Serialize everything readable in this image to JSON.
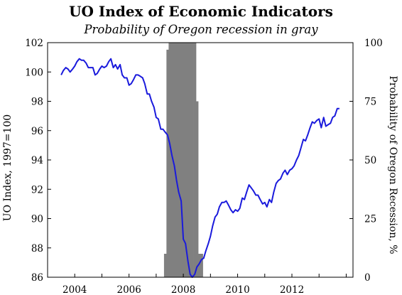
{
  "title": "UO Index of Economic Indicators",
  "subtitle": "Probability of Oregon recession in gray",
  "chart_data": {
    "type": "line",
    "title": "UO Index of Economic Indicators",
    "subtitle": "Probability of Oregon recession in gray",
    "xlabel": "",
    "ylabel_left": "UO Index, 1997=100",
    "ylabel_right": "Probability of Oregon Recession, %",
    "x_ticks": [
      "2004",
      "2006",
      "2008",
      "2010",
      "2012"
    ],
    "x_range": [
      2003.5,
      2014.75
    ],
    "y_left_range": [
      86,
      102
    ],
    "y_left_ticks": [
      86,
      88,
      90,
      92,
      94,
      96,
      98,
      100,
      102
    ],
    "y_right_range": [
      0,
      100
    ],
    "y_right_ticks": [
      0,
      25,
      50,
      75,
      100
    ],
    "grid": false,
    "colors": {
      "index_line": "#1a1adc",
      "recession_bars": "#808080"
    },
    "series": [
      {
        "axis": "left",
        "color": "#1a1adc",
        "points": [
          [
            2004.0,
            99.8
          ],
          [
            2004.08,
            100.1
          ],
          [
            2004.17,
            100.3
          ],
          [
            2004.25,
            100.2
          ],
          [
            2004.33,
            100.0
          ],
          [
            2004.42,
            100.2
          ],
          [
            2004.5,
            100.4
          ],
          [
            2004.58,
            100.7
          ],
          [
            2004.67,
            100.9
          ],
          [
            2004.75,
            100.8
          ],
          [
            2004.83,
            100.8
          ],
          [
            2004.92,
            100.6
          ],
          [
            2005.0,
            100.3
          ],
          [
            2005.08,
            100.3
          ],
          [
            2005.17,
            100.3
          ],
          [
            2005.25,
            99.8
          ],
          [
            2005.33,
            99.9
          ],
          [
            2005.42,
            100.2
          ],
          [
            2005.5,
            100.4
          ],
          [
            2005.58,
            100.3
          ],
          [
            2005.67,
            100.4
          ],
          [
            2005.75,
            100.7
          ],
          [
            2005.83,
            100.9
          ],
          [
            2005.92,
            100.3
          ],
          [
            2006.0,
            100.5
          ],
          [
            2006.08,
            100.2
          ],
          [
            2006.17,
            100.5
          ],
          [
            2006.25,
            99.8
          ],
          [
            2006.33,
            99.6
          ],
          [
            2006.42,
            99.6
          ],
          [
            2006.5,
            99.1
          ],
          [
            2006.58,
            99.2
          ],
          [
            2006.67,
            99.5
          ],
          [
            2006.75,
            99.8
          ],
          [
            2006.83,
            99.8
          ],
          [
            2006.92,
            99.7
          ],
          [
            2007.0,
            99.6
          ],
          [
            2007.08,
            99.2
          ],
          [
            2007.17,
            98.5
          ],
          [
            2007.25,
            98.5
          ],
          [
            2007.33,
            98.0
          ],
          [
            2007.42,
            97.6
          ],
          [
            2007.5,
            96.9
          ],
          [
            2007.58,
            96.8
          ],
          [
            2007.67,
            96.1
          ],
          [
            2007.75,
            96.1
          ],
          [
            2007.83,
            95.9
          ],
          [
            2007.92,
            95.7
          ],
          [
            2008.0,
            95.1
          ],
          [
            2008.08,
            94.3
          ],
          [
            2008.17,
            93.6
          ],
          [
            2008.25,
            92.6
          ],
          [
            2008.33,
            91.8
          ],
          [
            2008.42,
            91.2
          ],
          [
            2008.5,
            88.6
          ],
          [
            2008.58,
            88.3
          ],
          [
            2008.67,
            87.1
          ],
          [
            2008.75,
            86.2
          ],
          [
            2008.83,
            86.0
          ],
          [
            2008.92,
            86.2
          ],
          [
            2009.0,
            86.7
          ],
          [
            2009.08,
            86.9
          ],
          [
            2009.17,
            87.2
          ],
          [
            2009.25,
            87.3
          ],
          [
            2009.33,
            87.8
          ],
          [
            2009.42,
            88.3
          ],
          [
            2009.5,
            88.8
          ],
          [
            2009.58,
            89.5
          ],
          [
            2009.67,
            90.1
          ],
          [
            2009.75,
            90.3
          ],
          [
            2009.83,
            90.8
          ],
          [
            2009.92,
            91.1
          ],
          [
            2010.0,
            91.1
          ],
          [
            2010.08,
            91.2
          ],
          [
            2010.17,
            90.9
          ],
          [
            2010.25,
            90.6
          ],
          [
            2010.33,
            90.4
          ],
          [
            2010.42,
            90.6
          ],
          [
            2010.5,
            90.5
          ],
          [
            2010.58,
            90.7
          ],
          [
            2010.67,
            91.4
          ],
          [
            2010.75,
            91.3
          ],
          [
            2010.83,
            91.8
          ],
          [
            2010.92,
            92.3
          ],
          [
            2011.0,
            92.1
          ],
          [
            2011.08,
            91.9
          ],
          [
            2011.17,
            91.6
          ],
          [
            2011.25,
            91.6
          ],
          [
            2011.33,
            91.3
          ],
          [
            2011.42,
            91.0
          ],
          [
            2011.5,
            91.1
          ],
          [
            2011.58,
            90.8
          ],
          [
            2011.67,
            91.3
          ],
          [
            2011.75,
            91.1
          ],
          [
            2011.83,
            91.8
          ],
          [
            2011.92,
            92.4
          ],
          [
            2012.0,
            92.6
          ],
          [
            2012.08,
            92.7
          ],
          [
            2012.17,
            93.1
          ],
          [
            2012.25,
            93.3
          ],
          [
            2012.33,
            93.0
          ],
          [
            2012.42,
            93.3
          ],
          [
            2012.5,
            93.4
          ],
          [
            2012.58,
            93.6
          ],
          [
            2012.67,
            94.0
          ],
          [
            2012.75,
            94.3
          ],
          [
            2012.83,
            94.8
          ],
          [
            2012.92,
            95.4
          ],
          [
            2013.0,
            95.3
          ],
          [
            2013.08,
            95.7
          ],
          [
            2013.17,
            96.2
          ],
          [
            2013.25,
            96.6
          ],
          [
            2013.33,
            96.5
          ],
          [
            2013.42,
            96.7
          ],
          [
            2013.5,
            96.8
          ],
          [
            2013.58,
            96.2
          ],
          [
            2013.67,
            96.9
          ],
          [
            2013.75,
            96.3
          ],
          [
            2013.83,
            96.4
          ],
          [
            2013.92,
            96.5
          ],
          [
            2014.0,
            96.9
          ],
          [
            2014.08,
            97.0
          ],
          [
            2014.17,
            97.5
          ],
          [
            2014.25,
            97.5
          ]
        ]
      },
      {
        "axis": "right",
        "type": "bar",
        "color": "#808080",
        "points": [
          [
            2007.83,
            10
          ],
          [
            2007.92,
            97
          ],
          [
            2008.0,
            100
          ],
          [
            2008.08,
            100
          ],
          [
            2008.17,
            100
          ],
          [
            2008.25,
            100
          ],
          [
            2008.33,
            100
          ],
          [
            2008.42,
            100
          ],
          [
            2008.5,
            100
          ],
          [
            2008.58,
            100
          ],
          [
            2008.67,
            100
          ],
          [
            2008.75,
            100
          ],
          [
            2008.83,
            100
          ],
          [
            2008.92,
            100
          ],
          [
            2009.0,
            75
          ],
          [
            2009.08,
            10
          ],
          [
            2009.17,
            10
          ]
        ]
      }
    ]
  }
}
